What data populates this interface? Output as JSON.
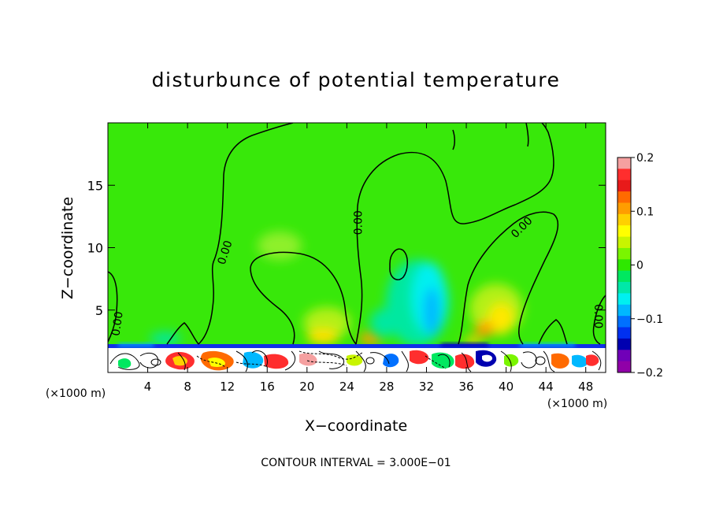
{
  "chart_data": {
    "type": "heatmap",
    "title": "disturbunce of potential temperature",
    "xlabel": "X−coordinate",
    "ylabel": "Z−coordinate",
    "x_unit_left": "(×1000 m)",
    "x_unit_right": "(×1000 m)",
    "xlim": [
      0,
      50
    ],
    "ylim": [
      0,
      20
    ],
    "x_ticks": [
      4,
      8,
      12,
      16,
      20,
      24,
      28,
      32,
      36,
      40,
      44,
      48
    ],
    "x_tick_labels": [
      "4",
      "8",
      "12",
      "16",
      "20",
      "24",
      "28",
      "32",
      "36",
      "40",
      "44",
      "48"
    ],
    "y_ticks": [
      5,
      10,
      15
    ],
    "y_tick_labels": [
      "5",
      "10",
      "15"
    ],
    "colorbar": {
      "min": -0.2,
      "max": 0.2,
      "ticks": [
        0.2,
        0.1,
        0,
        -0.1,
        -0.2
      ],
      "tick_labels": [
        "0.2",
        "0.1",
        "0",
        "−0.1",
        "−0.2"
      ],
      "colors": [
        "#f5a0a0",
        "#ff2e2e",
        "#e81a1a",
        "#ff6a00",
        "#ff9d00",
        "#ffd000",
        "#ffff00",
        "#c8f500",
        "#7af500",
        "#2ee800",
        "#00e860",
        "#00e8a8",
        "#00f0f0",
        "#00b8ff",
        "#0070ff",
        "#0030f0",
        "#0000b0",
        "#7000b8",
        "#9000a8"
      ]
    },
    "contour_labels": [
      {
        "text": "0.00",
        "x": 1.0,
        "z": 3.9,
        "angle": -82
      },
      {
        "text": "0.00",
        "x": 11.8,
        "z": 9.6,
        "angle": -72
      },
      {
        "text": "0.00",
        "x": 25.2,
        "z": 12.0,
        "angle": -90
      },
      {
        "text": "0.00",
        "x": 41.6,
        "z": 11.6,
        "angle": -45
      },
      {
        "text": "0.00",
        "x": 49.2,
        "z": 4.5,
        "angle": 90
      }
    ],
    "contour_interval_text": "CONTOUR INTERVAL = 3.000E−01"
  }
}
